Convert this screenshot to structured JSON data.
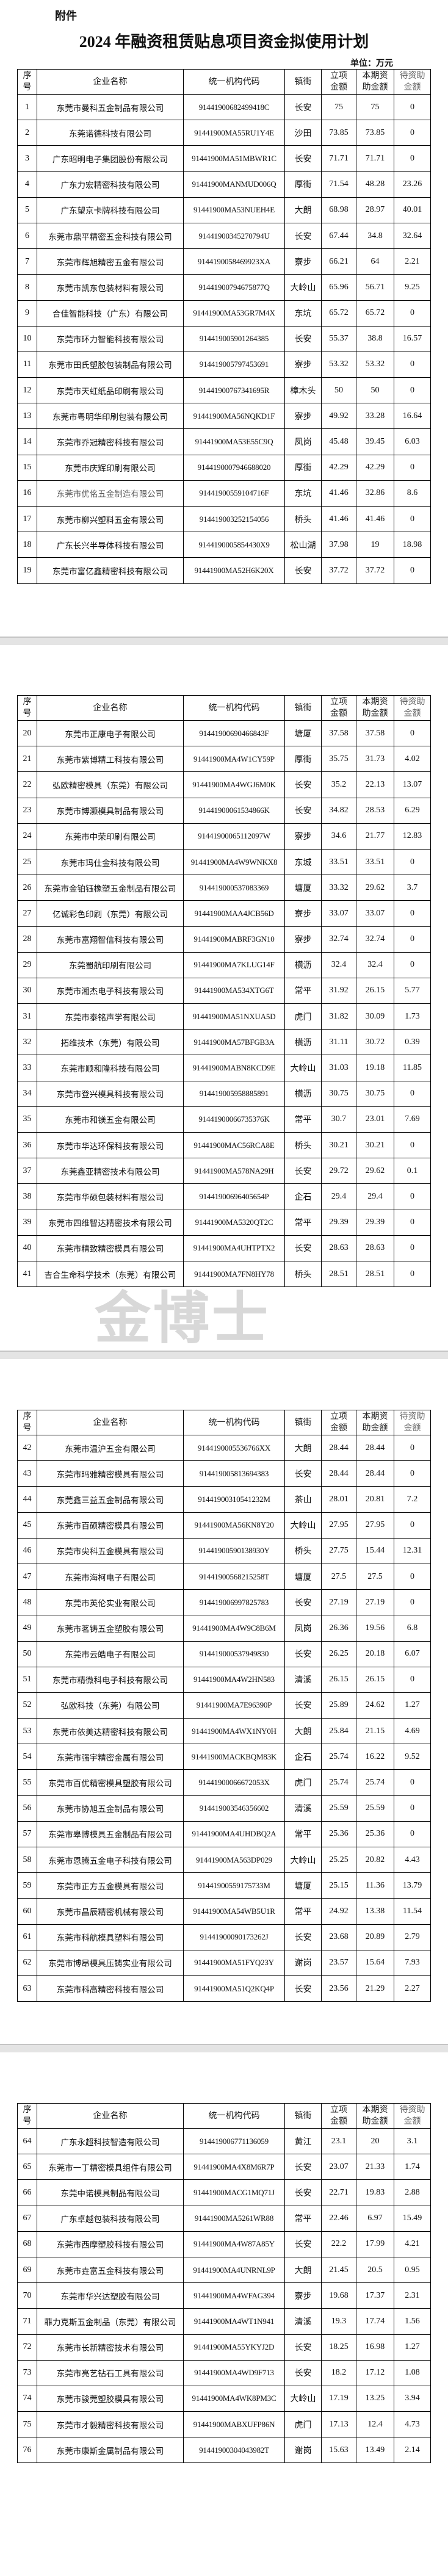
{
  "document": {
    "attachment_label": "附件",
    "title": "2024 年融资租赁贴息项目资金拟使用计划",
    "unit": "单位：万元",
    "watermark": "金博士"
  },
  "table": {
    "headers": [
      [
        "序",
        "号"
      ],
      [
        "企业名称"
      ],
      [
        "统一机构代码"
      ],
      [
        "镇街"
      ],
      [
        "立项",
        "金额"
      ],
      [
        "本期资",
        "助金额"
      ],
      [
        "待资助",
        "金额"
      ]
    ]
  },
  "pages": [
    {
      "rows": [
        [
          "1",
          "东莞市曼科五金制品有限公司",
          "91441900682499418C",
          "长安",
          "75",
          "75",
          "0"
        ],
        [
          "2",
          "东莞诺德科技有限公司",
          "91441900MA55RU1Y4E",
          "沙田",
          "73.85",
          "73.85",
          "0"
        ],
        [
          "3",
          "广东昭明电子集团股份有限公司",
          "91441900MA51MBWR1C",
          "长安",
          "71.71",
          "71.71",
          "0"
        ],
        [
          "4",
          "广东力宏精密科技有限公司",
          "91441900MANMUD006Q",
          "厚街",
          "71.54",
          "48.28",
          "23.26"
        ],
        [
          "5",
          "广东望京卡牌科技有限公司",
          "91441900MA53NUEH4E",
          "大朗",
          "68.98",
          "28.97",
          "40.01"
        ],
        [
          "6",
          "东莞市鼎平精密五金科技有限公司",
          "91441900345270794U",
          "长安",
          "67.44",
          "34.8",
          "32.64"
        ],
        [
          "7",
          "东莞市辉旭精密五金有限公司",
          "9144190058469923XA",
          "寮步",
          "66.21",
          "64",
          "2.21"
        ],
        [
          "8",
          "东莞市凯东包装材料有限公司",
          "91441900794675877Q",
          "大岭山",
          "65.96",
          "56.71",
          "9.25"
        ],
        [
          "9",
          "合佳智能科技（广东）有限公司",
          "91441900MA53GR7M4X",
          "东坑",
          "65.72",
          "65.72",
          "0"
        ],
        [
          "10",
          "东莞市环力智能科技有限公司",
          "914419005901264385",
          "长安",
          "55.37",
          "38.8",
          "16.57"
        ],
        [
          "11",
          "东莞市田氏塑胶包装制品有限公司",
          "914419005797453691",
          "寮步",
          "53.32",
          "53.32",
          "0"
        ],
        [
          "12",
          "东莞市天虹纸品印刷有限公司",
          "91441900767341695R",
          "樟木头",
          "50",
          "50",
          "0"
        ],
        [
          "13",
          "东莞市粤明华印刷包装有限公司",
          "91441900MA56NQKD1F",
          "寮步",
          "49.92",
          "33.28",
          "16.64"
        ],
        [
          "14",
          "东莞市乔冠精密科技有限公司",
          "91441900MA53E55C9Q",
          "凤岗",
          "45.48",
          "39.45",
          "6.03"
        ],
        [
          "15",
          "东莞市庆辉印刷有限公司",
          "9144190007946688020",
          "厚街",
          "42.29",
          "42.29",
          "0"
        ],
        [
          "16",
          "东莞市优佲五金制造有限公司",
          "91441900559104716F",
          "东坑",
          "41.46",
          "32.86",
          "8.6"
        ],
        [
          "17",
          "东莞市柳兴塑料五金有限公司",
          "914419003252154056",
          "桥头",
          "41.46",
          "41.46",
          "0"
        ],
        [
          "18",
          "广东长兴半导体科技有限公司",
          "9144190005854430X9",
          "松山湖",
          "37.98",
          "19",
          "18.98"
        ],
        [
          "19",
          "东莞市富亿鑫精密科技有限公司",
          "91441900MA52H6K20X",
          "长安",
          "37.72",
          "37.72",
          "0"
        ]
      ]
    },
    {
      "rows": [
        [
          "20",
          "东莞市正康电子有限公司",
          "91441900690466843F",
          "塘厦",
          "37.58",
          "37.58",
          "0"
        ],
        [
          "21",
          "东莞市紫博精工科技有限公司",
          "91441900MA4W1CY59P",
          "厚街",
          "35.75",
          "31.73",
          "4.02"
        ],
        [
          "22",
          "弘欧精密模具（东莞）有限公司",
          "91441900MA4WGJ6M0K",
          "长安",
          "35.2",
          "22.13",
          "13.07"
        ],
        [
          "23",
          "东莞市博灏模具制品有限公司",
          "91441900061534866K",
          "长安",
          "34.82",
          "28.53",
          "6.29"
        ],
        [
          "24",
          "东莞市中荣印刷有限公司",
          "91441900065112097W",
          "寮步",
          "34.6",
          "21.77",
          "12.83"
        ],
        [
          "25",
          "东莞市玛仕金科技有限公司",
          "91441900MA4W9WNKX8",
          "东城",
          "33.51",
          "33.51",
          "0"
        ],
        [
          "26",
          "东莞市金铂钰橡塑五金制品有限公司",
          "914419000537083369",
          "塘厦",
          "33.32",
          "29.62",
          "3.7"
        ],
        [
          "27",
          "亿诚彩色印刷（东莞）有限公司",
          "91441900MAA4JCB56D",
          "寮步",
          "33.07",
          "33.07",
          "0"
        ],
        [
          "28",
          "东莞市富翔智信科技有限公司",
          "91441900MABRF3GN10",
          "寮步",
          "32.74",
          "32.74",
          "0"
        ],
        [
          "29",
          "东莞蜀航印刷有限公司",
          "91441900MA7KLUG14F",
          "横沥",
          "32.4",
          "32.4",
          "0"
        ],
        [
          "30",
          "东莞市湘杰电子科技有限公司",
          "91441900MA534XTG6T",
          "常平",
          "31.92",
          "26.15",
          "5.77"
        ],
        [
          "31",
          "东莞市泰铭声学有限公司",
          "91441900MA51NXUA5D",
          "虎门",
          "31.82",
          "30.09",
          "1.73"
        ],
        [
          "32",
          "拓维技术（东莞）有限公司",
          "91441900MA57BFGB3A",
          "横沥",
          "31.11",
          "30.72",
          "0.39"
        ],
        [
          "33",
          "东莞市顺和隆科技有限公司",
          "91441900MABN8KCD9E",
          "大岭山",
          "31.03",
          "19.18",
          "11.85"
        ],
        [
          "34",
          "东莞市登兴模具科技有限公司",
          "914419005958885891",
          "横沥",
          "30.75",
          "30.75",
          "0"
        ],
        [
          "35",
          "东莞市和镁五金有限公司",
          "91441900066735376K",
          "常平",
          "30.7",
          "23.01",
          "7.69"
        ],
        [
          "36",
          "东莞市华达环保科技有限公司",
          "91441900MAC56RCA8E",
          "桥头",
          "30.21",
          "30.21",
          "0"
        ],
        [
          "37",
          "东莞鑫亚精密技术有限公司",
          "91441900MA578NA29H",
          "长安",
          "29.72",
          "29.62",
          "0.1"
        ],
        [
          "38",
          "东莞市华硕包装材料有限公司",
          "91441900696405654P",
          "企石",
          "29.4",
          "29.4",
          "0"
        ],
        [
          "39",
          "东莞市四维智达精密技术有限公司",
          "91441900MA5320QT2C",
          "常平",
          "29.39",
          "29.39",
          "0"
        ],
        [
          "40",
          "东莞市精致精密模具有限公司",
          "91441900MA4UHTPTX2",
          "长安",
          "28.63",
          "28.63",
          "0"
        ],
        [
          "41",
          "吉合生命科学技术（东莞）有限公司",
          "91441900MA7FN8HY78",
          "桥头",
          "28.51",
          "28.51",
          "0"
        ]
      ]
    },
    {
      "rows": [
        [
          "42",
          "东莞市温沪五金有限公司",
          "9144190005536766XX",
          "大朗",
          "28.44",
          "28.44",
          "0"
        ],
        [
          "43",
          "东莞市玛雅精密模具有限公司",
          "914419005813694383",
          "长安",
          "28.44",
          "28.44",
          "0"
        ],
        [
          "44",
          "东莞鑫三益五金制品有限公司",
          "91441900310541232M",
          "茶山",
          "28.01",
          "20.81",
          "7.2"
        ],
        [
          "45",
          "东莞市百硕精密模具有限公司",
          "91441900MA56KN8Y20",
          "大岭山",
          "27.95",
          "27.95",
          "0"
        ],
        [
          "46",
          "东莞市尖科五金模具有限公司",
          "91441900590138930Y",
          "桥头",
          "27.75",
          "15.44",
          "12.31"
        ],
        [
          "47",
          "东莞市海柯电子有限公司",
          "91441900568215258T",
          "塘厦",
          "27.5",
          "27.5",
          "0"
        ],
        [
          "48",
          "东莞市英伦实业有限公司",
          "914419006997825783",
          "长安",
          "27.19",
          "27.19",
          "0"
        ],
        [
          "49",
          "东莞市茗铸五金塑胶有限公司",
          "91441900MA4W9C8B6M",
          "凤岗",
          "26.36",
          "19.56",
          "6.8"
        ],
        [
          "50",
          "东莞市云皓电子有限公司",
          "914419000537949830",
          "长安",
          "26.25",
          "20.18",
          "6.07"
        ],
        [
          "51",
          "东莞市精微科电子科技有限公司",
          "91441900MA4W2HN583",
          "清溪",
          "26.15",
          "26.15",
          "0"
        ],
        [
          "52",
          "弘欧科技（东莞）有限公司",
          "91441900MA7E96390P",
          "长安",
          "25.89",
          "24.62",
          "1.27"
        ],
        [
          "53",
          "东莞市依美达精密科技有限公司",
          "91441900MA4WX1NY0H",
          "大朗",
          "25.84",
          "21.15",
          "4.69"
        ],
        [
          "54",
          "东莞市强宇精密金属有限公司",
          "91441900MACKBQM83K",
          "企石",
          "25.74",
          "16.22",
          "9.52"
        ],
        [
          "55",
          "东莞市百优精密模具塑胶有限公司",
          "91441900066672053X",
          "虎门",
          "25.74",
          "25.74",
          "0"
        ],
        [
          "56",
          "东莞市协旭五金制品有限公司",
          "914419003546356602",
          "清溪",
          "25.59",
          "25.59",
          "0"
        ],
        [
          "57",
          "东莞市皋博模具五金制品有限公司",
          "91441900MA4UHDBQ2A",
          "常平",
          "25.36",
          "25.36",
          "0"
        ],
        [
          "58",
          "东莞市恩腾五金电子科技有限公司",
          "91441900MA563DP029",
          "大岭山",
          "25.25",
          "20.82",
          "4.43"
        ],
        [
          "59",
          "东莞市正方五金模具有限公司",
          "91441900559175733M",
          "塘厦",
          "25.15",
          "11.36",
          "13.79"
        ],
        [
          "60",
          "东莞市昌辰精密机械有限公司",
          "91441900MA54WB5U1R",
          "常平",
          "24.92",
          "13.38",
          "11.54"
        ],
        [
          "61",
          "东莞市科航模具塑料有限公司",
          "91441900090173262J",
          "长安",
          "23.68",
          "20.89",
          "2.79"
        ],
        [
          "62",
          "东莞市博昂模具压铸实业有限公司",
          "91441900MA51FYQ23Y",
          "谢岗",
          "23.57",
          "15.64",
          "7.93"
        ],
        [
          "63",
          "东莞市科高精密科技有限公司",
          "91441900MA51Q2KQ4P",
          "长安",
          "23.56",
          "21.29",
          "2.27"
        ]
      ]
    },
    {
      "rows": [
        [
          "64",
          "广东永超科技智造有限公司",
          "914419006771136059",
          "黄江",
          "23.1",
          "20",
          "3.1"
        ],
        [
          "65",
          "东莞市一丁精密模具组件有限公司",
          "91441900MA4X8M6R7P",
          "长安",
          "23.07",
          "21.33",
          "1.74"
        ],
        [
          "66",
          "东莞中诺模具制品有限公司",
          "91441900MACG1MQ71J",
          "长安",
          "22.71",
          "19.83",
          "2.88"
        ],
        [
          "67",
          "广东卓越包装科技有限公司",
          "91441900MA5261WR88",
          "常平",
          "22.46",
          "6.97",
          "15.49"
        ],
        [
          "68",
          "东莞市西摩塑胶科技有限公司",
          "91441900MA4W87A85Y",
          "长安",
          "22.2",
          "17.99",
          "4.21"
        ],
        [
          "69",
          "东莞市垚富五金科技有限公司",
          "91441900MA4UNRNL9P",
          "大朗",
          "21.45",
          "20.5",
          "0.95"
        ],
        [
          "70",
          "东莞市华兴达塑胶有限公司",
          "91441900MA4WFAG394",
          "寮步",
          "19.68",
          "17.37",
          "2.31"
        ],
        [
          "71",
          "菲力克斯五金制品（东莞）有限公司",
          "91441900MA4WT1N941",
          "清溪",
          "19.3",
          "17.74",
          "1.56"
        ],
        [
          "72",
          "东莞市长新精密技术有限公司",
          "91441900MA55YKYJ2D",
          "长安",
          "18.25",
          "16.98",
          "1.27"
        ],
        [
          "73",
          "东莞市亮艺钻石工具有限公司",
          "91441900MA4WD9F713",
          "长安",
          "18.2",
          "17.12",
          "1.08"
        ],
        [
          "74",
          "东莞市骏莞塑胶模具有限公司",
          "91441900MA4WK8PM3C",
          "大岭山",
          "17.19",
          "13.25",
          "3.94"
        ],
        [
          "75",
          "东莞市才毅精密科技有限公司",
          "91441900MABXUFP86N",
          "虎门",
          "17.13",
          "12.4",
          "4.73"
        ],
        [
          "76",
          "东莞市康斯金属制品有限公司",
          "91441900304043982T",
          "谢岗",
          "15.63",
          "13.49",
          "2.14"
        ]
      ]
    }
  ]
}
